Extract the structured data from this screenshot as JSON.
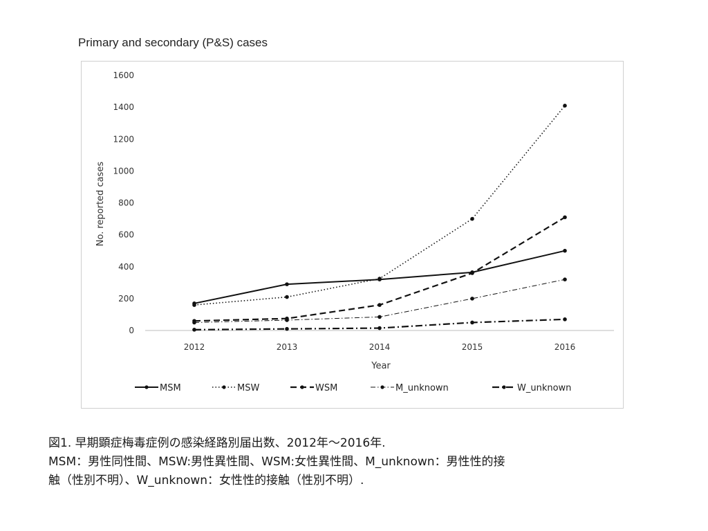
{
  "chart_data": {
    "type": "line",
    "title": "Primary and secondary (P&S) cases",
    "xlabel": "Year",
    "ylabel": "No. reported cases",
    "x": [
      "2012",
      "2013",
      "2014",
      "2015",
      "2016"
    ],
    "ylim": [
      0,
      1600
    ],
    "yticks": [
      0,
      200,
      400,
      600,
      800,
      1000,
      1200,
      1400,
      1600
    ],
    "grid": false,
    "legend_position": "bottom",
    "series": [
      {
        "name": "MSM",
        "values": [
          170,
          290,
          320,
          365,
          500
        ],
        "style": "solid"
      },
      {
        "name": "MSW",
        "values": [
          160,
          210,
          325,
          700,
          1410
        ],
        "style": "dotted"
      },
      {
        "name": "WSM",
        "values": [
          60,
          75,
          160,
          360,
          710
        ],
        "style": "dashed"
      },
      {
        "name": "M_unknown",
        "values": [
          50,
          65,
          85,
          200,
          320
        ],
        "style": "dash-dot-thin"
      },
      {
        "name": "W_unknown",
        "values": [
          5,
          10,
          15,
          50,
          70
        ],
        "style": "dash-dot-thick"
      }
    ],
    "line_color": "#111111"
  },
  "caption": {
    "line1": "図1. 早期顕症梅毒症例の感染経路別届出数、2012年～2016年.",
    "line2": "MSM：男性同性間、MSW:男性異性間、WSM:女性異性間、M_unknown：男性性的接",
    "line3": "触（性別不明）、W_unknown：女性性的接触（性別不明）."
  }
}
